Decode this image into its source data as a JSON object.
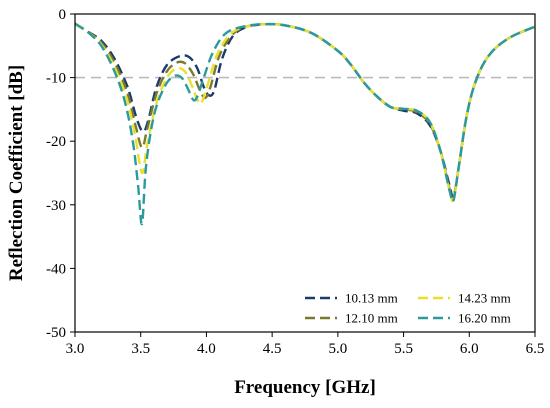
{
  "chart_data": {
    "type": "line",
    "xlabel": "Frequency [GHz]",
    "ylabel": "Reflection Coefficient [dB]",
    "xlim": [
      3.0,
      6.5
    ],
    "ylim": [
      -50,
      0
    ],
    "xticks": [
      3.0,
      3.5,
      4.0,
      4.5,
      5.0,
      5.5,
      6.0,
      6.5
    ],
    "xtick_labels": [
      "3.0",
      "3.5",
      "4.0",
      "4.5",
      "5.0",
      "5.5",
      "6.0",
      "6.5"
    ],
    "yticks": [
      0,
      -10,
      -20,
      -30,
      -40,
      -50
    ],
    "ytick_labels": [
      "0",
      "-10",
      "-20",
      "-30",
      "-40",
      "-50"
    ],
    "grid": false,
    "reference_line": {
      "y": -10,
      "color": "#bbbbbb",
      "style": "dashed"
    },
    "legend_position": "bottom-right",
    "series": [
      {
        "name": "10.13 mm",
        "color": "#1d3a6e",
        "points": [
          [
            3.0,
            -1.6
          ],
          [
            3.1,
            -2.8
          ],
          [
            3.2,
            -4.2
          ],
          [
            3.3,
            -7.0
          ],
          [
            3.4,
            -11.5
          ],
          [
            3.47,
            -16.5
          ],
          [
            3.52,
            -18.5
          ],
          [
            3.56,
            -16.5
          ],
          [
            3.62,
            -11.5
          ],
          [
            3.7,
            -8.0
          ],
          [
            3.8,
            -6.6
          ],
          [
            3.87,
            -6.8
          ],
          [
            3.93,
            -8.5
          ],
          [
            3.98,
            -11.5
          ],
          [
            4.02,
            -12.8
          ],
          [
            4.06,
            -12.0
          ],
          [
            4.12,
            -7.0
          ],
          [
            4.2,
            -3.5
          ],
          [
            4.3,
            -2.1
          ],
          [
            4.45,
            -1.6
          ],
          [
            4.6,
            -1.8
          ],
          [
            4.8,
            -3.0
          ],
          [
            5.0,
            -5.8
          ],
          [
            5.1,
            -8.0
          ],
          [
            5.2,
            -10.8
          ],
          [
            5.3,
            -13.0
          ],
          [
            5.4,
            -14.6
          ],
          [
            5.5,
            -15.2
          ],
          [
            5.6,
            -15.6
          ],
          [
            5.7,
            -17.5
          ],
          [
            5.78,
            -21.5
          ],
          [
            5.85,
            -27.0
          ],
          [
            5.88,
            -28.8
          ],
          [
            5.92,
            -24.0
          ],
          [
            5.98,
            -16.0
          ],
          [
            6.05,
            -10.5
          ],
          [
            6.15,
            -6.5
          ],
          [
            6.3,
            -3.8
          ],
          [
            6.5,
            -2.0
          ]
        ]
      },
      {
        "name": "12.10 mm",
        "color": "#7a7a2e",
        "points": [
          [
            3.0,
            -1.6
          ],
          [
            3.1,
            -2.8
          ],
          [
            3.2,
            -4.5
          ],
          [
            3.3,
            -7.6
          ],
          [
            3.4,
            -12.5
          ],
          [
            3.46,
            -17.5
          ],
          [
            3.51,
            -21.0
          ],
          [
            3.55,
            -18.0
          ],
          [
            3.62,
            -12.5
          ],
          [
            3.7,
            -9.0
          ],
          [
            3.78,
            -7.6
          ],
          [
            3.84,
            -7.8
          ],
          [
            3.9,
            -9.5
          ],
          [
            3.95,
            -12.0
          ],
          [
            3.99,
            -13.2
          ],
          [
            4.03,
            -11.5
          ],
          [
            4.1,
            -6.5
          ],
          [
            4.2,
            -3.2
          ],
          [
            4.3,
            -2.0
          ],
          [
            4.45,
            -1.6
          ],
          [
            4.6,
            -1.8
          ],
          [
            4.8,
            -3.0
          ],
          [
            5.0,
            -5.8
          ],
          [
            5.1,
            -8.0
          ],
          [
            5.2,
            -10.8
          ],
          [
            5.3,
            -13.0
          ],
          [
            5.4,
            -14.6
          ],
          [
            5.5,
            -15.0
          ],
          [
            5.6,
            -15.4
          ],
          [
            5.7,
            -17.3
          ],
          [
            5.78,
            -21.5
          ],
          [
            5.85,
            -27.5
          ],
          [
            5.88,
            -29.0
          ],
          [
            5.92,
            -24.0
          ],
          [
            5.98,
            -16.0
          ],
          [
            6.05,
            -10.5
          ],
          [
            6.15,
            -6.5
          ],
          [
            6.3,
            -3.8
          ],
          [
            6.5,
            -2.0
          ]
        ]
      },
      {
        "name": "14.23 mm",
        "color": "#e8e02a",
        "points": [
          [
            3.0,
            -1.6
          ],
          [
            3.1,
            -2.9
          ],
          [
            3.2,
            -4.8
          ],
          [
            3.3,
            -8.3
          ],
          [
            3.4,
            -13.8
          ],
          [
            3.46,
            -19.5
          ],
          [
            3.51,
            -25.0
          ],
          [
            3.55,
            -20.5
          ],
          [
            3.62,
            -14.0
          ],
          [
            3.7,
            -10.0
          ],
          [
            3.77,
            -8.6
          ],
          [
            3.83,
            -8.9
          ],
          [
            3.88,
            -10.8
          ],
          [
            3.93,
            -13.4
          ],
          [
            3.96,
            -14.0
          ],
          [
            4.0,
            -11.8
          ],
          [
            4.08,
            -6.5
          ],
          [
            4.18,
            -3.2
          ],
          [
            4.3,
            -2.0
          ],
          [
            4.45,
            -1.6
          ],
          [
            4.6,
            -1.8
          ],
          [
            4.8,
            -3.0
          ],
          [
            5.0,
            -5.8
          ],
          [
            5.1,
            -8.0
          ],
          [
            5.2,
            -10.8
          ],
          [
            5.3,
            -13.0
          ],
          [
            5.4,
            -14.6
          ],
          [
            5.5,
            -14.9
          ],
          [
            5.6,
            -15.2
          ],
          [
            5.7,
            -17.0
          ],
          [
            5.78,
            -21.5
          ],
          [
            5.85,
            -27.8
          ],
          [
            5.88,
            -29.2
          ],
          [
            5.92,
            -24.0
          ],
          [
            5.98,
            -16.0
          ],
          [
            6.05,
            -10.5
          ],
          [
            6.15,
            -6.5
          ],
          [
            6.3,
            -3.8
          ],
          [
            6.5,
            -2.0
          ]
        ]
      },
      {
        "name": "16.20 mm",
        "color": "#2a9a9e",
        "points": [
          [
            3.0,
            -1.5
          ],
          [
            3.1,
            -2.9
          ],
          [
            3.2,
            -5.0
          ],
          [
            3.3,
            -9.0
          ],
          [
            3.38,
            -13.8
          ],
          [
            3.44,
            -20.0
          ],
          [
            3.48,
            -27.0
          ],
          [
            3.51,
            -33.0
          ],
          [
            3.54,
            -24.0
          ],
          [
            3.6,
            -16.0
          ],
          [
            3.68,
            -11.5
          ],
          [
            3.75,
            -9.8
          ],
          [
            3.81,
            -10.0
          ],
          [
            3.86,
            -11.8
          ],
          [
            3.9,
            -13.5
          ],
          [
            3.93,
            -13.0
          ],
          [
            3.98,
            -10.0
          ],
          [
            4.05,
            -6.0
          ],
          [
            4.15,
            -3.0
          ],
          [
            4.3,
            -1.9
          ],
          [
            4.45,
            -1.6
          ],
          [
            4.6,
            -1.8
          ],
          [
            4.8,
            -3.0
          ],
          [
            5.0,
            -5.8
          ],
          [
            5.1,
            -8.0
          ],
          [
            5.2,
            -10.8
          ],
          [
            5.3,
            -13.0
          ],
          [
            5.4,
            -14.6
          ],
          [
            5.5,
            -14.9
          ],
          [
            5.6,
            -15.2
          ],
          [
            5.7,
            -17.0
          ],
          [
            5.78,
            -21.5
          ],
          [
            5.85,
            -27.8
          ],
          [
            5.88,
            -29.3
          ],
          [
            5.92,
            -24.0
          ],
          [
            5.98,
            -16.0
          ],
          [
            6.05,
            -10.5
          ],
          [
            6.15,
            -6.5
          ],
          [
            6.3,
            -3.8
          ],
          [
            6.5,
            -2.0
          ]
        ]
      }
    ]
  }
}
